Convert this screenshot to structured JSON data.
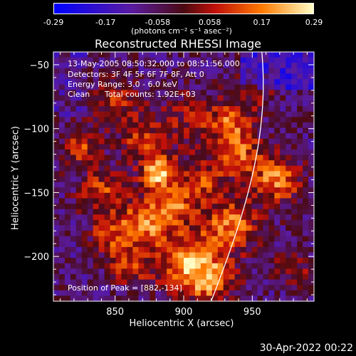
{
  "colorbar": {
    "ticks": [
      "-0.29",
      "-0.17",
      "-0.058",
      "0.058",
      "0.17",
      "0.29"
    ],
    "units": "(photons cm⁻² s⁻¹ asec⁻²)"
  },
  "chart_data": {
    "type": "heatmap",
    "title": "Reconstructed RHESSI Image",
    "xlabel": "Heliocentric X (arcsec)",
    "ylabel": "Heliocentric Y (arcsec)",
    "xlim": [
      805,
      995
    ],
    "ylim": [
      -235,
      -40
    ],
    "x_ticks": [
      850,
      900,
      950
    ],
    "y_ticks": [
      -50,
      -100,
      -150,
      -200
    ],
    "x_tick_labels": [
      "850",
      "900",
      "950"
    ],
    "y_tick_labels": [
      "−50",
      "−100",
      "−150",
      "−200"
    ],
    "value_range": [
      -0.29,
      0.29
    ],
    "peak_position": [
      882,
      -134
    ],
    "annotations": [
      "13-May-2005 08:50:32.000 to 08:51:56.000",
      "Detectors: 3F 4F 5F 6F 7F 8F, Att 0",
      "Energy Range: 3.0 - 6.0 keV",
      "Clean",
      "Total counts: 1.92E+03"
    ],
    "peak_label": "Position of Peak = [882,-134]"
  },
  "footer": {
    "timestamp": "30-Apr-2022 00:22"
  }
}
